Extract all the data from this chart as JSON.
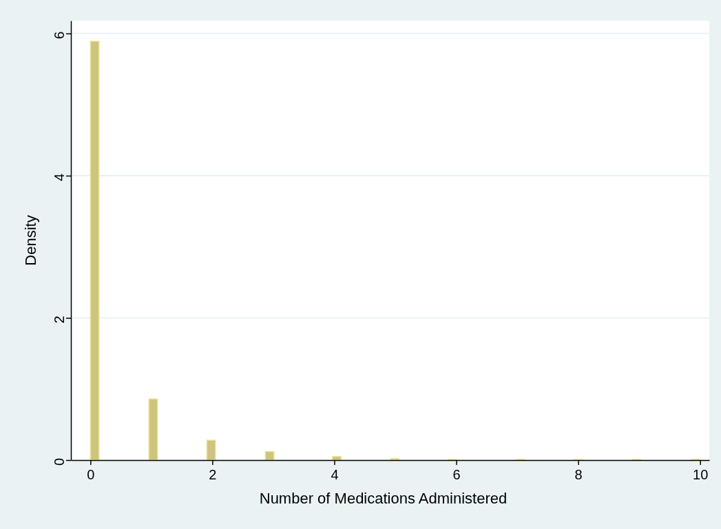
{
  "chart_data": {
    "type": "histogram",
    "xlabel": "Number of Medications Administered",
    "ylabel": "Density",
    "bins": [
      0,
      0.14,
      0.96,
      1.1,
      1.91,
      2.05,
      2.87,
      3.01,
      3.97,
      4.11,
      4.92,
      5.06,
      5.87,
      6.01,
      6.98,
      7.12,
      7.93,
      8.07,
      8.89,
      9.03,
      9.86,
      10
    ],
    "values": [
      5.89,
      0,
      0.86,
      0,
      0.28,
      0,
      0.12,
      0,
      0.05,
      0,
      0.02,
      0,
      0.01,
      0,
      0.01,
      0,
      0.01,
      0,
      0.01,
      0,
      0.01
    ],
    "color": "#cdc47f",
    "xlim": [
      -0.32,
      10.15
    ],
    "ylim": [
      0,
      6.18
    ],
    "xticks": [
      0,
      2,
      4,
      6,
      8,
      10
    ],
    "yticks": [
      0,
      2,
      4,
      6
    ],
    "grid": "y"
  }
}
